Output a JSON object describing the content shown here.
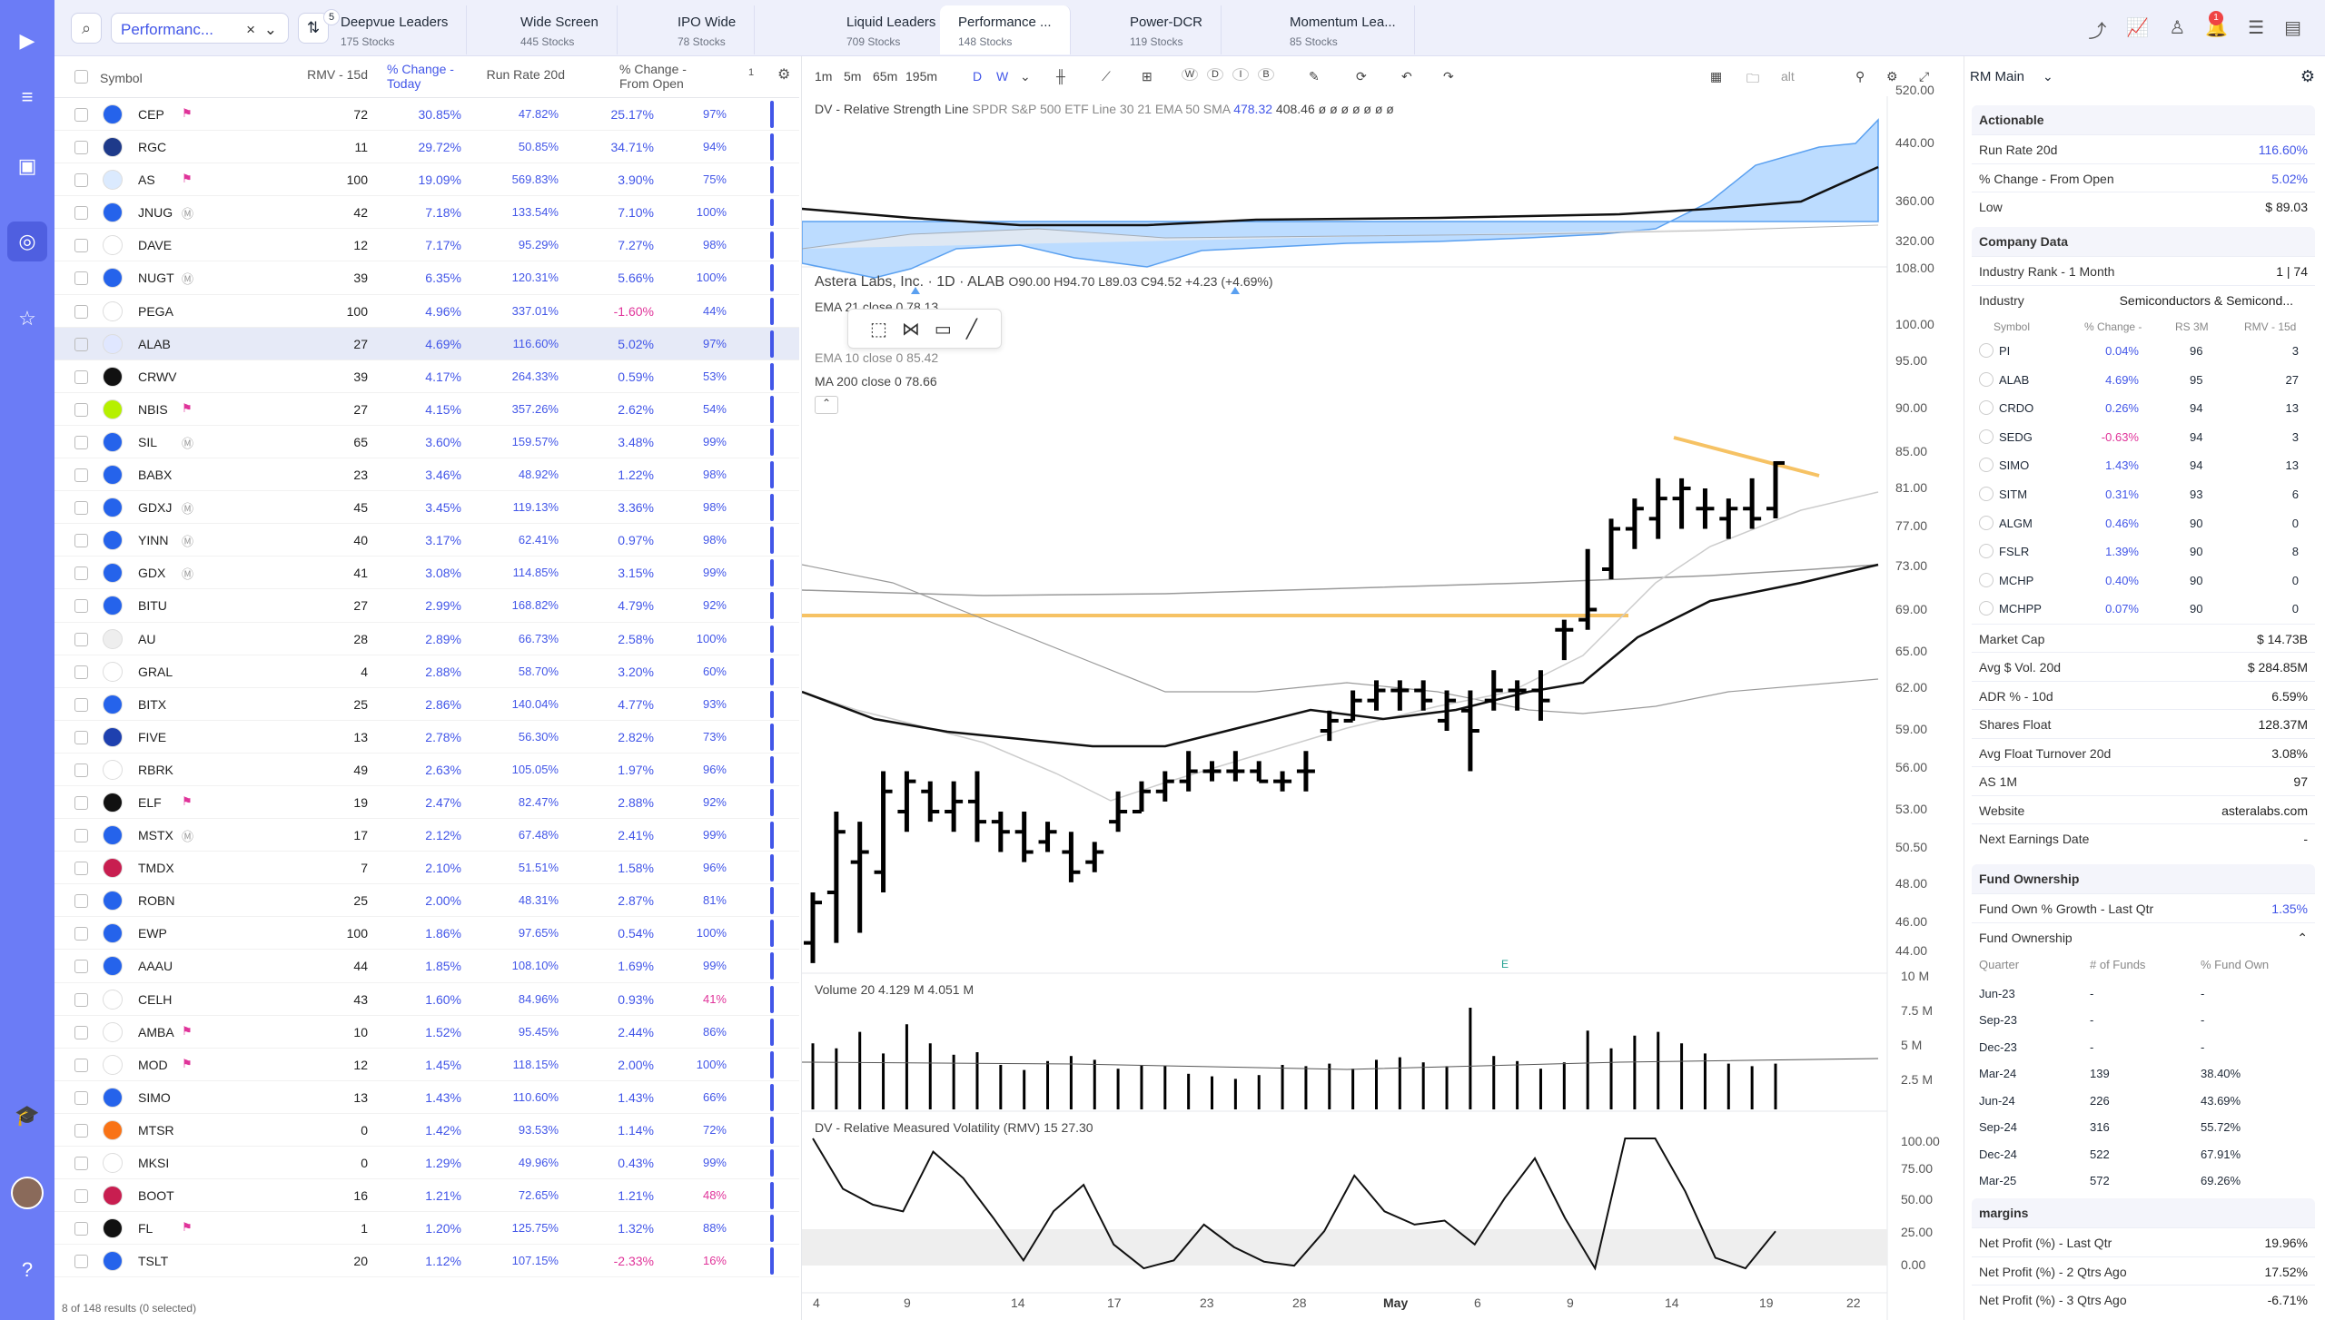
{
  "nav": {
    "icons": [
      "logo-play-icon",
      "menu-lines-icon",
      "screener-icon",
      "scanner-icon",
      "star-icon",
      "school-icon",
      "help-icon"
    ]
  },
  "topbar": {
    "list_name": "Performanc...",
    "filter_count": "5",
    "tabs": [
      {
        "label": "Deepvue Leaders",
        "sub": "175 Stocks"
      },
      {
        "label": "Wide Screen",
        "sub": "445 Stocks"
      },
      {
        "label": "IPO Wide",
        "sub": "78 Stocks"
      },
      {
        "label": "Liquid Leaders",
        "sub": "709 Stocks"
      },
      {
        "label": "Performance ...",
        "sub": "148 Stocks"
      },
      {
        "label": "Power-DCR",
        "sub": "119 Stocks"
      },
      {
        "label": "Momentum Lea...",
        "sub": "85 Stocks"
      }
    ],
    "notif_count": "1"
  },
  "table": {
    "headers": {
      "symbol": "Symbol",
      "rmv": "RMV - 15d",
      "chg_today": "% Change - Today",
      "run_rate": "Run Rate 20d",
      "chg_open": "% Change - From Open",
      "extra": "1"
    },
    "rows": [
      {
        "s": "CEP",
        "r": "72",
        "t": "30.85%",
        "rr": "47.82%",
        "o": "25.17%",
        "p": "97%",
        "f": 1
      },
      {
        "s": "RGC",
        "r": "11",
        "t": "29.72%",
        "rr": "50.85%",
        "o": "34.71%",
        "p": "94%"
      },
      {
        "s": "AS",
        "r": "100",
        "t": "19.09%",
        "rr": "569.83%",
        "o": "3.90%",
        "p": "75%",
        "f": 1
      },
      {
        "s": "JNUG",
        "r": "42",
        "t": "7.18%",
        "rr": "133.54%",
        "o": "7.10%",
        "p": "100%",
        "m": 1
      },
      {
        "s": "DAVE",
        "r": "12",
        "t": "7.17%",
        "rr": "95.29%",
        "o": "7.27%",
        "p": "98%"
      },
      {
        "s": "NUGT",
        "r": "39",
        "t": "6.35%",
        "rr": "120.31%",
        "o": "5.66%",
        "p": "100%",
        "m": 1
      },
      {
        "s": "PEGA",
        "r": "100",
        "t": "4.96%",
        "rr": "337.01%",
        "o": "-1.60%",
        "p": "44%",
        "n": 1
      },
      {
        "s": "ALAB",
        "r": "27",
        "t": "4.69%",
        "rr": "116.60%",
        "o": "5.02%",
        "p": "97%",
        "sel": 1
      },
      {
        "s": "CRWV",
        "r": "39",
        "t": "4.17%",
        "rr": "264.33%",
        "o": "0.59%",
        "p": "53%"
      },
      {
        "s": "NBIS",
        "r": "27",
        "t": "4.15%",
        "rr": "357.26%",
        "o": "2.62%",
        "p": "54%",
        "f": 1
      },
      {
        "s": "SIL",
        "r": "65",
        "t": "3.60%",
        "rr": "159.57%",
        "o": "3.48%",
        "p": "99%",
        "m": 1
      },
      {
        "s": "BABX",
        "r": "23",
        "t": "3.46%",
        "rr": "48.92%",
        "o": "1.22%",
        "p": "98%"
      },
      {
        "s": "GDXJ",
        "r": "45",
        "t": "3.45%",
        "rr": "119.13%",
        "o": "3.36%",
        "p": "98%",
        "m": 1
      },
      {
        "s": "YINN",
        "r": "40",
        "t": "3.17%",
        "rr": "62.41%",
        "o": "0.97%",
        "p": "98%",
        "m": 1
      },
      {
        "s": "GDX",
        "r": "41",
        "t": "3.08%",
        "rr": "114.85%",
        "o": "3.15%",
        "p": "99%",
        "m": 1
      },
      {
        "s": "BITU",
        "r": "27",
        "t": "2.99%",
        "rr": "168.82%",
        "o": "4.79%",
        "p": "92%"
      },
      {
        "s": "AU",
        "r": "28",
        "t": "2.89%",
        "rr": "66.73%",
        "o": "2.58%",
        "p": "100%"
      },
      {
        "s": "GRAL",
        "r": "4",
        "t": "2.88%",
        "rr": "58.70%",
        "o": "3.20%",
        "p": "60%"
      },
      {
        "s": "BITX",
        "r": "25",
        "t": "2.86%",
        "rr": "140.04%",
        "o": "4.77%",
        "p": "93%"
      },
      {
        "s": "FIVE",
        "r": "13",
        "t": "2.78%",
        "rr": "56.30%",
        "o": "2.82%",
        "p": "73%"
      },
      {
        "s": "RBRK",
        "r": "49",
        "t": "2.63%",
        "rr": "105.05%",
        "o": "1.97%",
        "p": "96%"
      },
      {
        "s": "ELF",
        "r": "19",
        "t": "2.47%",
        "rr": "82.47%",
        "o": "2.88%",
        "p": "92%",
        "f": 1
      },
      {
        "s": "MSTX",
        "r": "17",
        "t": "2.12%",
        "rr": "67.48%",
        "o": "2.41%",
        "p": "99%",
        "m": 1
      },
      {
        "s": "TMDX",
        "r": "7",
        "t": "2.10%",
        "rr": "51.51%",
        "o": "1.58%",
        "p": "96%"
      },
      {
        "s": "ROBN",
        "r": "25",
        "t": "2.00%",
        "rr": "48.31%",
        "o": "2.87%",
        "p": "81%"
      },
      {
        "s": "EWP",
        "r": "100",
        "t": "1.86%",
        "rr": "97.65%",
        "o": "0.54%",
        "p": "100%"
      },
      {
        "s": "AAAU",
        "r": "44",
        "t": "1.85%",
        "rr": "108.10%",
        "o": "1.69%",
        "p": "99%"
      },
      {
        "s": "CELH",
        "r": "43",
        "t": "1.60%",
        "rr": "84.96%",
        "o": "0.93%",
        "p": "41%",
        "pn": 1
      },
      {
        "s": "AMBA",
        "r": "10",
        "t": "1.52%",
        "rr": "95.45%",
        "o": "2.44%",
        "p": "86%",
        "f": 1
      },
      {
        "s": "MOD",
        "r": "12",
        "t": "1.45%",
        "rr": "118.15%",
        "o": "2.00%",
        "p": "100%",
        "f": 1
      },
      {
        "s": "SIMO",
        "r": "13",
        "t": "1.43%",
        "rr": "110.60%",
        "o": "1.43%",
        "p": "66%"
      },
      {
        "s": "MTSR",
        "r": "0",
        "t": "1.42%",
        "rr": "93.53%",
        "o": "1.14%",
        "p": "72%"
      },
      {
        "s": "MKSI",
        "r": "0",
        "t": "1.29%",
        "rr": "49.96%",
        "o": "0.43%",
        "p": "99%"
      },
      {
        "s": "BOOT",
        "r": "16",
        "t": "1.21%",
        "rr": "72.65%",
        "o": "1.21%",
        "p": "48%",
        "pn": 1
      },
      {
        "s": "FL",
        "r": "1",
        "t": "1.20%",
        "rr": "125.75%",
        "o": "1.32%",
        "p": "88%",
        "f": 1
      },
      {
        "s": "TSLT",
        "r": "20",
        "t": "1.12%",
        "rr": "107.15%",
        "o": "-2.33%",
        "p": "16%",
        "n": 1,
        "pn": 1
      }
    ],
    "footer": "8 of 148 results (0 selected)"
  },
  "chart": {
    "timeframes": [
      "1m",
      "5m",
      "65m",
      "195m",
      "D",
      "W"
    ],
    "tools": [
      "W",
      "D",
      "I",
      "B"
    ],
    "alt": "alt",
    "rs_legend": "DV - Relative Strength Line",
    "rs_desc": "SPDR S&P 500 ETF Line 30 21 EMA 50 SMA",
    "rs_v1": "478.32",
    "rs_v2": "408.46 ø ø ø ø ø ø ø",
    "title": "Astera Labs, Inc. · 1D · ALAB",
    "ohlc": "O90.00 H94.70 L89.03 C94.52 +4.23 (+4.69%)",
    "ema21": "EMA 21 close 0  78.13",
    "ema10": "EMA 10 close 0  85.42",
    "ma200": "MA 200 close 0  78.66",
    "vol_legend": "Volume 20  4.129 M  4.051 M",
    "rmv_legend": "DV - Relative Measured Volatility (RMV) 15  27.30",
    "price_ticks": [
      "108.00",
      "100.00",
      "95.00",
      "90.00",
      "85.00",
      "81.00",
      "77.00",
      "73.00",
      "69.00",
      "65.00",
      "62.00",
      "59.00",
      "56.00",
      "53.00",
      "50.50",
      "48.00",
      "46.00",
      "44.00"
    ],
    "rs_ticks": [
      "520.00",
      "440.00",
      "360.00",
      "320.00"
    ],
    "vol_ticks": [
      "10 M",
      "7.5 M",
      "5 M",
      "2.5 M"
    ],
    "rmv_ticks": [
      "100.00",
      "75.00",
      "50.00",
      "25.00",
      "0.00"
    ],
    "x_ticks": [
      "4",
      "9",
      "14",
      "17",
      "23",
      "28",
      "May",
      "6",
      "9",
      "14",
      "19",
      "22"
    ],
    "earnings_marker": "E"
  },
  "chart_data": {
    "type": "ohlc",
    "symbol": "ALAB",
    "bars": [
      {
        "o": 47,
        "h": 52,
        "l": 45,
        "c": 51
      },
      {
        "o": 52,
        "h": 60,
        "l": 47,
        "c": 58
      },
      {
        "o": 55,
        "h": 59,
        "l": 48,
        "c": 56
      },
      {
        "o": 54,
        "h": 64,
        "l": 52,
        "c": 62
      },
      {
        "o": 60,
        "h": 64,
        "l": 58,
        "c": 63
      },
      {
        "o": 62,
        "h": 63,
        "l": 59,
        "c": 60
      },
      {
        "o": 60,
        "h": 63,
        "l": 58,
        "c": 61
      },
      {
        "o": 61,
        "h": 64,
        "l": 57,
        "c": 59
      },
      {
        "o": 59,
        "h": 60,
        "l": 56,
        "c": 58
      },
      {
        "o": 58,
        "h": 60,
        "l": 55,
        "c": 56
      },
      {
        "o": 57,
        "h": 59,
        "l": 56,
        "c": 58
      },
      {
        "o": 56,
        "h": 58,
        "l": 53,
        "c": 54
      },
      {
        "o": 55,
        "h": 57,
        "l": 54,
        "c": 56
      },
      {
        "o": 59,
        "h": 62,
        "l": 58,
        "c": 60
      },
      {
        "o": 60,
        "h": 63,
        "l": 60,
        "c": 62
      },
      {
        "o": 62,
        "h": 64,
        "l": 61,
        "c": 63
      },
      {
        "o": 63,
        "h": 66,
        "l": 62,
        "c": 64
      },
      {
        "o": 64,
        "h": 65,
        "l": 63,
        "c": 64
      },
      {
        "o": 64,
        "h": 66,
        "l": 63,
        "c": 64
      },
      {
        "o": 64,
        "h": 65,
        "l": 63,
        "c": 63
      },
      {
        "o": 63,
        "h": 64,
        "l": 62,
        "c": 63
      },
      {
        "o": 64,
        "h": 66,
        "l": 62,
        "c": 64
      },
      {
        "o": 68,
        "h": 70,
        "l": 67,
        "c": 69
      },
      {
        "o": 69,
        "h": 72,
        "l": 69,
        "c": 71
      },
      {
        "o": 71,
        "h": 73,
        "l": 70,
        "c": 72
      },
      {
        "o": 72,
        "h": 73,
        "l": 70,
        "c": 72
      },
      {
        "o": 72,
        "h": 73,
        "l": 70,
        "c": 71
      },
      {
        "o": 69,
        "h": 72,
        "l": 68,
        "c": 71
      },
      {
        "o": 70,
        "h": 72,
        "l": 64,
        "c": 68
      },
      {
        "o": 71,
        "h": 74,
        "l": 70,
        "c": 72
      },
      {
        "o": 72,
        "h": 73,
        "l": 70,
        "c": 72
      },
      {
        "o": 72,
        "h": 74,
        "l": 69,
        "c": 71
      },
      {
        "o": 78,
        "h": 79,
        "l": 75,
        "c": 78
      },
      {
        "o": 79,
        "h": 86,
        "l": 78,
        "c": 80
      },
      {
        "o": 84,
        "h": 89,
        "l": 83,
        "c": 88
      },
      {
        "o": 88,
        "h": 91,
        "l": 86,
        "c": 90
      },
      {
        "o": 89,
        "h": 93,
        "l": 87,
        "c": 91
      },
      {
        "o": 91,
        "h": 93,
        "l": 88,
        "c": 92
      },
      {
        "o": 90,
        "h": 92,
        "l": 88,
        "c": 90
      },
      {
        "o": 89,
        "h": 91,
        "l": 87,
        "c": 90
      },
      {
        "o": 90,
        "h": 93,
        "l": 88,
        "c": 89
      },
      {
        "o": 90,
        "h": 94.7,
        "l": 89.03,
        "c": 94.52
      }
    ],
    "volume": [
      5.2,
      4.8,
      6.1,
      4.4,
      6.7,
      5.2,
      4.3,
      4.5,
      3.5,
      3.1,
      3.8,
      4.2,
      3.9,
      3.2,
      3.5,
      3.4,
      2.8,
      2.6,
      2.4,
      2.7,
      3.5,
      3.4,
      3.6,
      3.2,
      3.9,
      4.1,
      3.7,
      3.4,
      8.0,
      4.2,
      3.8,
      3.2,
      3.7,
      6.2,
      4.8,
      5.8,
      6.1,
      5.2,
      4.4,
      3.6,
      3.4,
      3.6
    ],
    "rmv": [
      100,
      62,
      50,
      45,
      90,
      70,
      40,
      8,
      45,
      65,
      20,
      2,
      8,
      35,
      18,
      7,
      4,
      30,
      72,
      45,
      35,
      38,
      20,
      55,
      85,
      40,
      2,
      100,
      100,
      60,
      10,
      2,
      30
    ],
    "ylim": [
      44,
      108
    ]
  },
  "panel": {
    "layout_name": "RM Main",
    "actionable": {
      "title": "Actionable",
      "items": [
        {
          "k": "Run Rate 20d",
          "v": "116.60%",
          "c": "blue"
        },
        {
          "k": "% Change - From Open",
          "v": "5.02%",
          "c": "blue"
        },
        {
          "k": "Low",
          "v": "$ 89.03",
          "c": ""
        }
      ]
    },
    "company": {
      "title": "Company Data",
      "rank_label": "Industry Rank - 1 Month",
      "rank_value": "1 | 74",
      "industry_label": "Industry",
      "industry_value": "Semiconductors & Semicond...",
      "peer_headers": [
        "Symbol",
        "% Change -",
        "RS 3M",
        "RMV - 15d"
      ],
      "peers": [
        {
          "s": "PI",
          "c": "0.04%",
          "rs": "96",
          "r": "3"
        },
        {
          "s": "ALAB",
          "c": "4.69%",
          "rs": "95",
          "r": "27"
        },
        {
          "s": "CRDO",
          "c": "0.26%",
          "rs": "94",
          "r": "13"
        },
        {
          "s": "SEDG",
          "c": "-0.63%",
          "rs": "94",
          "r": "3",
          "n": 1
        },
        {
          "s": "SIMO",
          "c": "1.43%",
          "rs": "94",
          "r": "13"
        },
        {
          "s": "SITM",
          "c": "0.31%",
          "rs": "93",
          "r": "6"
        },
        {
          "s": "ALGM",
          "c": "0.46%",
          "rs": "90",
          "r": "0"
        },
        {
          "s": "FSLR",
          "c": "1.39%",
          "rs": "90",
          "r": "8"
        },
        {
          "s": "MCHP",
          "c": "0.40%",
          "rs": "90",
          "r": "0"
        },
        {
          "s": "MCHPP",
          "c": "0.07%",
          "rs": "90",
          "r": "0"
        }
      ],
      "items": [
        {
          "k": "Market Cap",
          "v": "$ 14.73B"
        },
        {
          "k": "Avg $ Vol. 20d",
          "v": "$ 284.85M"
        },
        {
          "k": "ADR % - 10d",
          "v": "6.59%"
        },
        {
          "k": "Shares Float",
          "v": "128.37M"
        },
        {
          "k": "Avg Float Turnover 20d",
          "v": "3.08%"
        },
        {
          "k": "AS 1M",
          "v": "97"
        },
        {
          "k": "Website",
          "v": "asteralabs.com"
        },
        {
          "k": "Next Earnings Date",
          "v": "-"
        }
      ]
    },
    "fund": {
      "title": "Fund Ownership",
      "growth_label": "Fund Own % Growth - Last Qtr",
      "growth_value": "1.35%",
      "sub_title": "Fund Ownership",
      "headers": [
        "Quarter",
        "# of Funds",
        "% Fund Own"
      ],
      "rows": [
        {
          "q": "Jun-23",
          "n": "-",
          "p": "-"
        },
        {
          "q": "Sep-23",
          "n": "-",
          "p": "-"
        },
        {
          "q": "Dec-23",
          "n": "-",
          "p": "-"
        },
        {
          "q": "Mar-24",
          "n": "139",
          "p": "38.40%"
        },
        {
          "q": "Jun-24",
          "n": "226",
          "p": "43.69%"
        },
        {
          "q": "Sep-24",
          "n": "316",
          "p": "55.72%"
        },
        {
          "q": "Dec-24",
          "n": "522",
          "p": "67.91%"
        },
        {
          "q": "Mar-25",
          "n": "572",
          "p": "69.26%"
        }
      ]
    },
    "margins": {
      "title": "margins",
      "items": [
        {
          "k": "Net Profit (%) - Last Qtr",
          "v": "19.96%"
        },
        {
          "k": "Net Profit (%) - 2 Qtrs Ago",
          "v": "17.52%"
        },
        {
          "k": "Net Profit (%) - 3 Qtrs Ago",
          "v": "-6.71%"
        }
      ]
    }
  }
}
